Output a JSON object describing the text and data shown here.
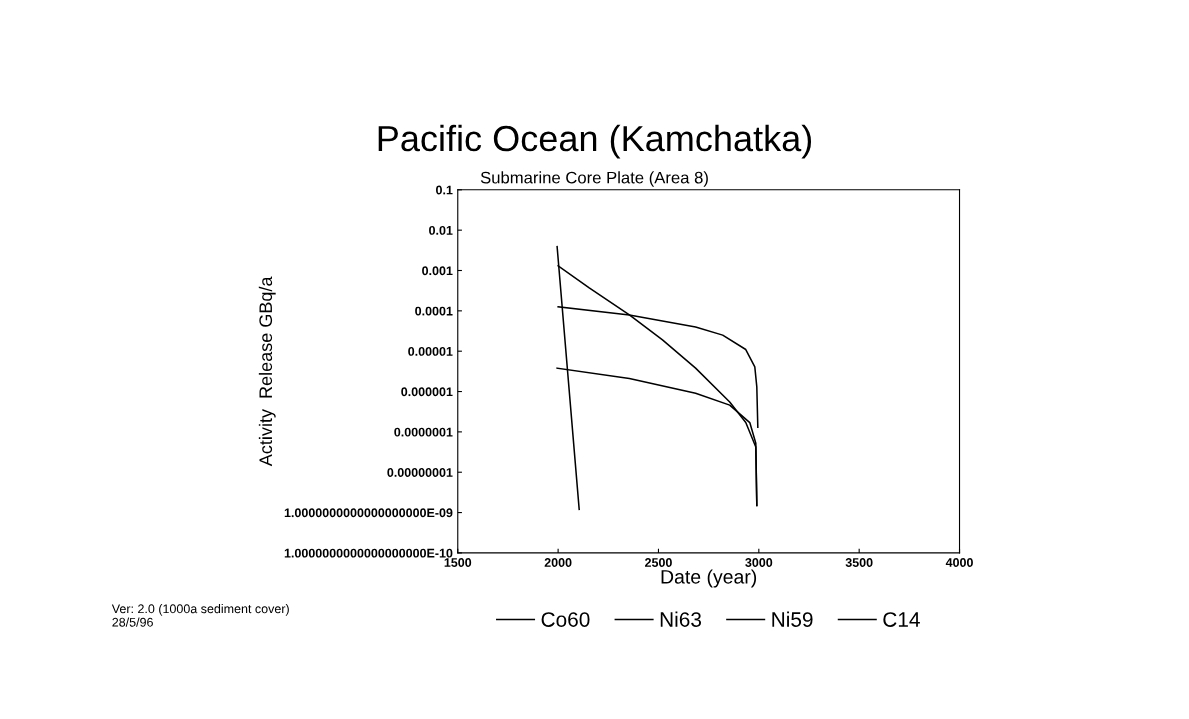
{
  "chart_data": {
    "type": "line",
    "title": "Pacific Ocean (Kamchatka)",
    "subtitle": "Submarine Core Plate (Area 8)",
    "xlabel": "Date (year)",
    "ylabel": "Activity  Release GBq/a",
    "log": "y",
    "grid": false,
    "legend": "bottom",
    "marker": "none",
    "line_style": "solid",
    "xlim": [
      1500,
      4000
    ],
    "xticks": [
      1500,
      2000,
      2500,
      3000,
      3500,
      4000
    ],
    "ylim": [
      1e-10,
      0.1
    ],
    "yticks": [
      {
        "value": 1e-10,
        "label": "1.0000000000000000000E-10"
      },
      {
        "value": 1e-09,
        "label": "1.0000000000000000000E-09"
      },
      {
        "value": 1e-08,
        "label": "0.00000001"
      },
      {
        "value": 1e-07,
        "label": "0.0000001"
      },
      {
        "value": 1e-06,
        "label": "0.000001"
      },
      {
        "value": 1e-05,
        "label": "0.00001"
      },
      {
        "value": 0.0001,
        "label": "0.0001"
      },
      {
        "value": 0.001,
        "label": "0.001"
      },
      {
        "value": 0.01,
        "label": "0.01"
      },
      {
        "value": 0.1,
        "label": "0.1"
      }
    ],
    "series": [
      {
        "name": "Co60",
        "color": "#000000",
        "x": [
          1995,
          2105
        ],
        "values": [
          0.0039,
          1.2e-09
        ]
      },
      {
        "name": "Ni63",
        "color": "#000000",
        "x": [
          2000,
          2155,
          2355,
          2520,
          2685,
          2855,
          2935,
          2985,
          2990
        ],
        "values": [
          0.0013,
          0.00037,
          7.9e-05,
          1.9e-05,
          3.8e-06,
          5.5e-07,
          1.7e-07,
          4.2e-08,
          1.5e-09
        ]
      },
      {
        "name": "Ni59",
        "color": "#000000",
        "x": [
          2000,
          2355,
          2685,
          2820,
          2935,
          2980,
          2990,
          2995
        ],
        "values": [
          0.000126,
          7.9e-05,
          4e-05,
          2.5e-05,
          1.1e-05,
          4.1e-06,
          1.3e-06,
          1.3e-07
        ]
      },
      {
        "name": "C14",
        "color": "#000000",
        "x": [
          1995,
          2355,
          2685,
          2855,
          2955,
          2985,
          2990
        ],
        "values": [
          3.8e-06,
          2.1e-06,
          9.1e-07,
          4.6e-07,
          1.7e-07,
          5.2e-08,
          1.5e-09
        ]
      }
    ],
    "annotations": [
      "Ver: 2.0 (1000a sediment cover)\n28/5/96"
    ]
  }
}
